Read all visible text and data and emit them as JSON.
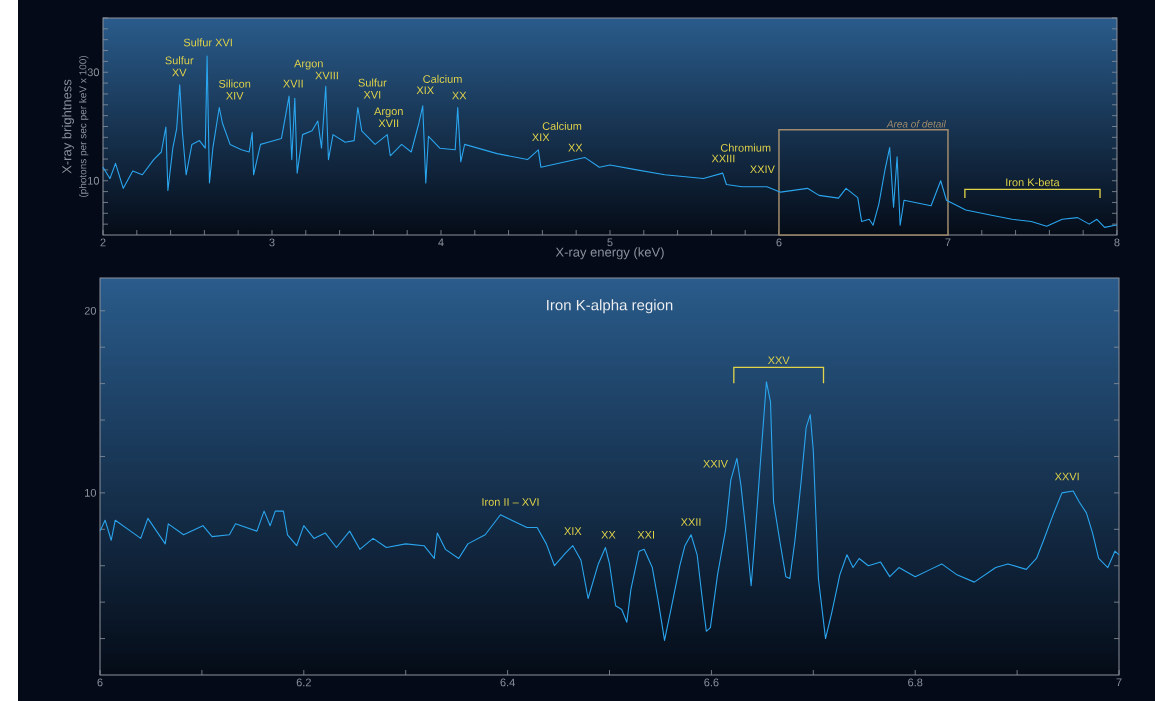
{
  "chart_data": [
    {
      "type": "line",
      "xlabel": "X-ray energy (keV)",
      "ylabel": "X-ray brightness",
      "color": "#2aa5ee",
      "x": [
        2.0,
        2.041,
        2.074,
        2.12,
        2.176,
        2.233,
        2.3,
        2.345,
        2.372,
        2.384,
        2.413,
        2.436,
        2.454,
        2.47,
        2.492,
        2.526,
        2.571,
        2.605,
        2.616,
        2.63,
        2.65,
        2.688,
        2.707,
        2.752,
        2.819,
        2.865,
        2.883,
        2.891,
        2.932,
        2.977,
        3.056,
        3.101,
        3.117,
        3.135,
        3.149,
        3.181,
        3.237,
        3.271,
        3.293,
        3.318,
        3.334,
        3.361,
        3.433,
        3.486,
        3.508,
        3.531,
        3.61,
        3.682,
        3.7,
        3.767,
        3.824,
        3.869,
        3.892,
        3.91,
        3.926,
        3.993,
        4.084,
        4.099,
        4.117,
        4.14,
        4.332,
        4.512,
        4.576,
        4.591,
        4.738,
        4.851,
        4.937,
        5.0,
        5.142,
        5.324,
        5.553,
        5.667,
        5.689,
        5.781,
        5.929,
        6.009,
        6.169,
        6.237,
        6.352,
        6.397,
        6.466,
        6.489,
        6.534,
        6.557,
        6.591,
        6.626,
        6.655,
        6.678,
        6.699,
        6.717,
        6.74,
        6.9,
        6.957,
        6.991,
        7.105,
        7.265,
        7.379,
        7.493,
        7.584,
        7.676,
        7.767,
        7.836,
        7.881,
        7.927,
        7.989,
        8.0
      ],
      "values": [
        12.5,
        10.4,
        13.2,
        8.6,
        11.8,
        11.1,
        13.9,
        15.3,
        19.9,
        8.2,
        16.0,
        19.6,
        27.7,
        18.9,
        11.1,
        16.7,
        17.4,
        16.0,
        33.0,
        9.6,
        16.0,
        23.5,
        20.6,
        16.7,
        15.7,
        15.3,
        18.9,
        11.1,
        16.7,
        17.1,
        17.8,
        25.6,
        13.9,
        25.2,
        11.4,
        18.5,
        19.2,
        21.0,
        16.0,
        27.4,
        13.9,
        18.5,
        17.1,
        17.4,
        23.5,
        19.2,
        16.7,
        18.5,
        14.6,
        16.7,
        15.3,
        20.6,
        23.8,
        9.6,
        18.2,
        16.0,
        15.7,
        23.5,
        13.5,
        16.7,
        15.0,
        13.9,
        15.7,
        12.5,
        13.5,
        14.3,
        12.5,
        12.9,
        12.1,
        11.1,
        10.4,
        11.4,
        9.3,
        8.9,
        8.9,
        7.9,
        8.6,
        7.3,
        6.8,
        8.6,
        6.9,
        2.5,
        2.9,
        1.8,
        5.7,
        11.8,
        16.1,
        5.1,
        14.4,
        1.8,
        6.4,
        5.4,
        10.0,
        6.4,
        4.6,
        3.6,
        2.9,
        2.5,
        1.6,
        2.9,
        3.2,
        2.0,
        2.9,
        1.4,
        1.8,
        1.8
      ],
      "xlim": [
        2,
        8
      ],
      "ylim": [
        0,
        40
      ],
      "xticks": [
        2,
        {
          "value": 2.2,
          "label": null
        },
        {
          "value": 2.4,
          "label": null
        },
        {
          "value": 2.6,
          "label": null
        },
        {
          "value": 2.8,
          "label": null
        },
        3,
        {
          "value": 3.2,
          "label": null
        },
        {
          "value": 3.4,
          "label": null
        },
        {
          "value": 3.6,
          "label": null
        },
        {
          "value": 3.8,
          "label": null
        },
        4,
        {
          "value": 4.2,
          "label": null
        },
        {
          "value": 4.4,
          "label": null
        },
        {
          "value": 4.6,
          "label": null
        },
        {
          "value": 4.8,
          "label": null
        },
        5,
        {
          "value": 5.2,
          "label": null
        },
        {
          "value": 5.4,
          "label": null
        },
        {
          "value": 5.6,
          "label": null
        },
        {
          "value": 5.8,
          "label": null
        },
        6,
        {
          "value": 6.2,
          "label": null
        },
        {
          "value": 6.4,
          "label": null
        },
        {
          "value": 6.6,
          "label": null
        },
        {
          "value": 6.8,
          "label": null
        },
        7,
        {
          "value": 7.2,
          "label": null
        },
        {
          "value": 7.4,
          "label": null
        },
        {
          "value": 7.6,
          "label": null
        },
        {
          "value": 7.8,
          "label": null
        },
        8
      ],
      "yticks": [
        {
          "value": 2,
          "label": null
        },
        {
          "value": 4,
          "label": null
        },
        {
          "value": 6,
          "label": null
        },
        {
          "value": 8,
          "label": null
        },
        10,
        {
          "value": 12,
          "label": null
        },
        {
          "value": 14,
          "label": null
        },
        {
          "value": 16,
          "label": null
        },
        {
          "value": 18,
          "label": null
        },
        {
          "value": 20,
          "label": null
        },
        {
          "value": 22,
          "label": null
        },
        {
          "value": 24,
          "label": null
        },
        {
          "value": 26,
          "label": null
        },
        {
          "value": 28,
          "label": null
        },
        30,
        {
          "value": 32,
          "label": null
        },
        {
          "value": 34,
          "label": null
        },
        {
          "value": 36,
          "label": null
        },
        {
          "value": 38,
          "label": null
        },
        {
          "value": 40,
          "label": null
        }
      ],
      "annotations": [
        "(photons per sec per keV x 100)",
        {
          "text": "Sulfur XV",
          "x": 2.454,
          "y": 27.7
        },
        {
          "text": "Sulfur XVI",
          "x": 2.616,
          "y": 33.0
        },
        {
          "text": "Silicon XIV",
          "x": 2.688,
          "y": 23.5
        },
        {
          "text": "XVII",
          "x": 3.101,
          "y": 25.6
        },
        {
          "text": "Argon",
          "x": 3.318,
          "y": 27.4
        },
        {
          "text": "XVIII",
          "x": 3.318,
          "y": 27.4
        },
        {
          "text": "Sulfur XVI",
          "x": 3.508,
          "y": 23.5
        },
        {
          "text": "Argon XVII",
          "x": 3.682,
          "y": 18.5
        },
        {
          "text": "Calcium",
          "x": 3.892,
          "y": 23.8
        },
        {
          "text": "XIX",
          "x": 3.892,
          "y": 23.8
        },
        {
          "text": "XX",
          "x": 4.099,
          "y": 23.5
        },
        {
          "text": "Calcium",
          "x": 4.576,
          "y": 15.7
        },
        {
          "text": "XIX",
          "x": 4.576,
          "y": 15.7
        },
        {
          "text": "XX",
          "x": 4.851,
          "y": 14.3
        },
        {
          "text": "Chromium",
          "x": 5.667,
          "y": 11.4
        },
        {
          "text": "XXIII",
          "x": 5.667,
          "y": 11.4
        },
        {
          "text": "XXIV",
          "x": 5.929,
          "y": 8.9
        },
        "Iron K-beta"
      ],
      "bands": [
        {
          "axis": "x",
          "from": 6,
          "to": 7,
          "label": "Area of detail",
          "color": "#a08c6c"
        }
      ]
    },
    {
      "type": "line",
      "title": "Iron K-alpha region",
      "color": "#2aa5ee",
      "x": [
        6.0,
        6.005,
        6.011,
        6.015,
        6.03,
        6.04,
        6.047,
        6.064,
        6.067,
        6.082,
        6.101,
        6.11,
        6.127,
        6.133,
        6.154,
        6.161,
        6.167,
        6.172,
        6.18,
        6.184,
        6.193,
        6.2,
        6.21,
        6.221,
        6.232,
        6.245,
        6.255,
        6.268,
        6.281,
        6.3,
        6.318,
        6.328,
        6.331,
        6.339,
        6.352,
        6.361,
        6.378,
        6.393,
        6.404,
        6.419,
        6.429,
        6.438,
        6.446,
        6.457,
        6.464,
        6.472,
        6.479,
        6.489,
        6.496,
        6.5,
        6.506,
        6.512,
        6.517,
        6.521,
        6.529,
        6.534,
        6.542,
        6.548,
        6.554,
        6.561,
        6.569,
        6.574,
        6.58,
        6.586,
        6.591,
        6.595,
        6.599,
        6.606,
        6.614,
        6.619,
        6.625,
        6.629,
        6.634,
        6.639,
        6.642,
        6.648,
        6.654,
        6.658,
        6.661,
        6.667,
        6.673,
        6.677,
        6.682,
        6.688,
        6.693,
        6.697,
        6.7,
        6.705,
        6.712,
        6.718,
        6.726,
        6.733,
        6.739,
        6.745,
        6.754,
        6.766,
        6.775,
        6.784,
        6.8,
        6.815,
        6.826,
        6.841,
        6.858,
        6.879,
        6.891,
        6.909,
        6.919,
        6.926,
        6.936,
        6.944,
        6.955,
        6.961,
        6.968,
        6.974,
        6.98,
        6.989,
        6.996,
        7.0
      ],
      "values": [
        7.9,
        8.5,
        7.4,
        8.5,
        7.9,
        7.5,
        8.6,
        7.2,
        8.3,
        7.7,
        8.2,
        7.6,
        7.7,
        8.3,
        7.9,
        9.0,
        8.2,
        9.0,
        9.0,
        7.7,
        7.1,
        8.2,
        7.5,
        7.8,
        7.0,
        7.9,
        6.9,
        7.5,
        7.0,
        7.2,
        7.1,
        6.4,
        7.8,
        6.9,
        6.4,
        7.2,
        7.7,
        8.8,
        8.5,
        8.1,
        8.1,
        7.2,
        6.0,
        6.7,
        7.1,
        6.3,
        4.2,
        6.1,
        7.0,
        6.1,
        3.8,
        3.6,
        2.9,
        4.7,
        6.8,
        6.9,
        5.9,
        4.0,
        1.9,
        3.8,
        6.0,
        7.1,
        7.7,
        6.6,
        4.2,
        2.4,
        2.6,
        5.5,
        8.0,
        10.7,
        11.9,
        10.4,
        7.8,
        4.9,
        7.0,
        11.6,
        16.1,
        15.0,
        9.5,
        7.4,
        5.4,
        5.3,
        7.4,
        10.6,
        13.6,
        14.3,
        12.3,
        5.3,
        2.0,
        3.4,
        5.5,
        6.6,
        5.9,
        6.4,
        6.0,
        6.2,
        5.4,
        5.9,
        5.4,
        5.8,
        6.1,
        5.5,
        5.1,
        5.9,
        6.1,
        5.8,
        6.4,
        7.4,
        8.9,
        10.0,
        10.1,
        9.5,
        8.9,
        7.8,
        6.4,
        5.9,
        6.8,
        6.6
      ],
      "xlim": [
        6,
        7
      ],
      "ylim": [
        0,
        21.8
      ],
      "xticks": [
        6,
        {
          "value": 6.1,
          "label": null
        },
        6.2,
        {
          "value": 6.3,
          "label": null
        },
        6.4,
        {
          "value": 6.5,
          "label": null
        },
        6.6,
        {
          "value": 6.7,
          "label": null
        },
        6.8,
        {
          "value": 6.9,
          "label": null
        },
        7
      ],
      "yticks": [
        {
          "value": 2,
          "label": null
        },
        {
          "value": 4,
          "label": null
        },
        {
          "value": 6,
          "label": null
        },
        {
          "value": 8,
          "label": null
        },
        10,
        {
          "value": 12,
          "label": null
        },
        {
          "value": 14,
          "label": null
        },
        {
          "value": 16,
          "label": null
        },
        {
          "value": 18,
          "label": null
        },
        20
      ],
      "annotations": [
        {
          "text": "Iron II – XVI",
          "x": 6.393,
          "y": 8.8
        },
        {
          "text": "XIX",
          "x": 6.464,
          "y": 7.1
        },
        {
          "text": "XX",
          "x": 6.496,
          "y": 7.0
        },
        {
          "text": "XXI",
          "x": 6.534,
          "y": 6.9
        },
        {
          "text": "XXII",
          "x": 6.58,
          "y": 7.7
        },
        {
          "text": "XXIV",
          "x": 6.625,
          "y": 11.9
        },
        {
          "text": "XXVI",
          "x": 6.955,
          "y": 10.1
        },
        "XXV"
      ]
    }
  ]
}
